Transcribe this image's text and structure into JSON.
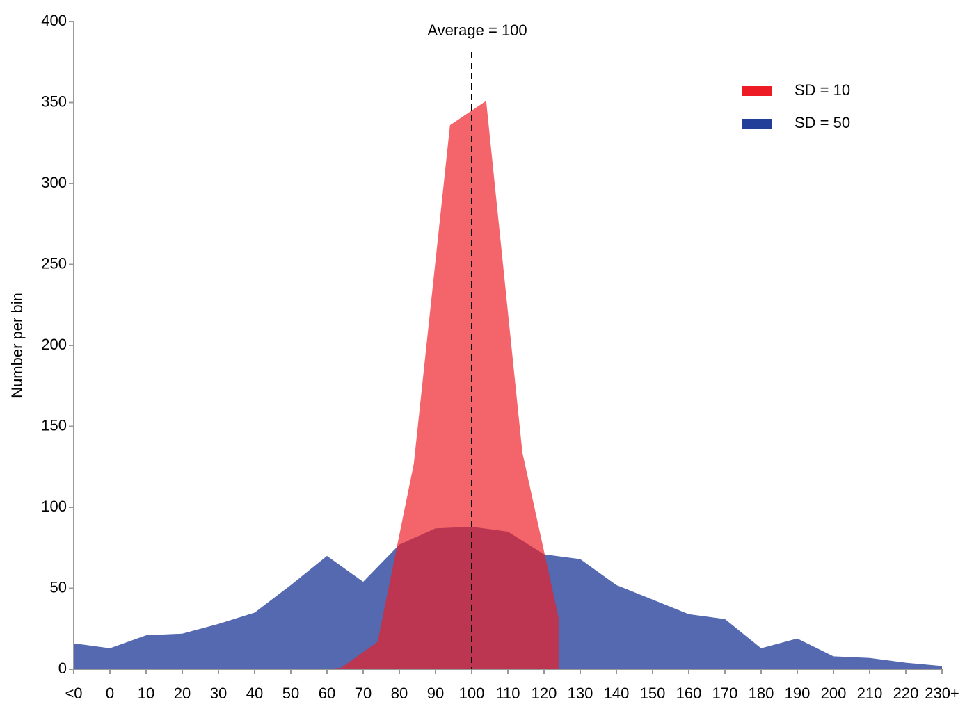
{
  "chart_data": {
    "type": "area",
    "y_label": "Number per bin",
    "xlim": [
      -10,
      230
    ],
    "xticks": [
      {
        "value": -10,
        "label": "<0"
      },
      0,
      10,
      20,
      30,
      40,
      50,
      60,
      70,
      80,
      90,
      100,
      110,
      120,
      130,
      140,
      150,
      160,
      170,
      180,
      190,
      200,
      210,
      220,
      {
        "value": 230,
        "label": "230+"
      }
    ],
    "ylim": [
      0,
      400
    ],
    "yticks": [
      0,
      50,
      100,
      150,
      200,
      250,
      300,
      350,
      400
    ],
    "legend_position": "upper right",
    "annotation": {
      "text": "Average = 100",
      "x": 100
    },
    "series": [
      {
        "name": "SD = 50",
        "color": "#213f99",
        "fill": "#5469b0",
        "fill_opacity": 1,
        "x": [
          -10,
          0,
          10,
          20,
          30,
          40,
          50,
          60,
          70,
          80,
          90,
          100,
          110,
          120,
          130,
          140,
          150,
          160,
          170,
          180,
          190,
          200,
          210,
          220,
          230
        ],
        "values": [
          16,
          13,
          21,
          22,
          28,
          35,
          52,
          70,
          54,
          77,
          87,
          88,
          85,
          71,
          68,
          52,
          43,
          34,
          31,
          13,
          19,
          8,
          7,
          4,
          2
        ]
      },
      {
        "name": "SD = 10",
        "color": "#ed1c24",
        "fill": "#ed1c24",
        "fill_opacity": 0.68,
        "x": [
          60,
          64,
          74,
          84,
          94,
          104,
          114,
          124
        ],
        "values": [
          0,
          1,
          17,
          127,
          336,
          351,
          134,
          32
        ]
      }
    ]
  }
}
